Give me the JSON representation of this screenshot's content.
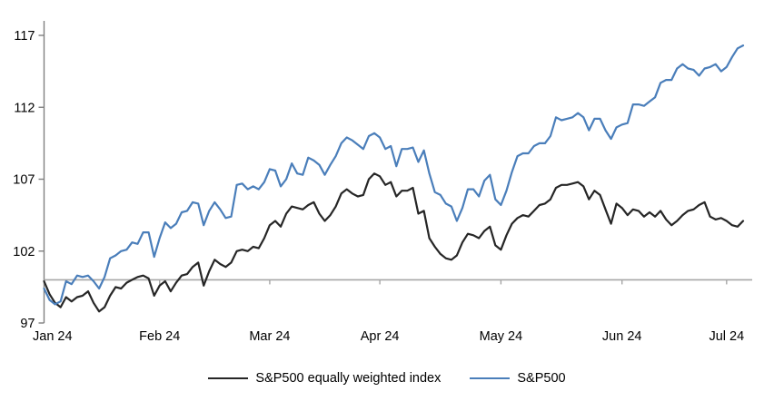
{
  "chart_data": {
    "type": "line",
    "title": "",
    "xlabel": "",
    "ylabel": "",
    "grid": false,
    "legend_position": "bottom",
    "baseline_value": 100,
    "y_axis": {
      "ticks": [
        97,
        102,
        107,
        112,
        117
      ],
      "min": 97,
      "max": 118.7
    },
    "x_axis": {
      "tick_labels": [
        "Jan 24",
        "Feb 24",
        "Mar 24",
        "Apr 24",
        "May 24",
        "Jun 24",
        "Jul 24"
      ],
      "tick_point_index": [
        0,
        21,
        41,
        61,
        83,
        105,
        124
      ],
      "total_points": 128
    },
    "series": [
      {
        "name": "S&P500 equally weighted index",
        "color": "#262626",
        "values": [
          99.9,
          99.0,
          98.4,
          98.1,
          98.8,
          98.5,
          98.8,
          98.9,
          99.2,
          98.4,
          97.8,
          98.1,
          98.9,
          99.5,
          99.4,
          99.8,
          100.0,
          100.2,
          100.3,
          100.1,
          98.9,
          99.6,
          99.9,
          99.2,
          99.8,
          100.3,
          100.4,
          100.9,
          101.2,
          99.6,
          100.6,
          101.4,
          101.1,
          100.9,
          101.2,
          102.0,
          102.1,
          102.0,
          102.3,
          102.2,
          102.9,
          103.8,
          104.1,
          103.7,
          104.6,
          105.1,
          105.0,
          104.9,
          105.2,
          105.4,
          104.6,
          104.1,
          104.5,
          105.1,
          106.0,
          106.3,
          106.0,
          105.8,
          105.9,
          107.0,
          107.4,
          107.2,
          106.6,
          106.8,
          105.8,
          106.2,
          106.2,
          106.4,
          104.6,
          104.8,
          102.9,
          102.3,
          101.8,
          101.5,
          101.4,
          101.7,
          102.6,
          103.2,
          103.1,
          102.9,
          103.4,
          103.7,
          102.4,
          102.1,
          103.1,
          103.9,
          104.3,
          104.5,
          104.4,
          104.8,
          105.2,
          105.3,
          105.6,
          106.4,
          106.6,
          106.6,
          106.7,
          106.8,
          106.5,
          105.6,
          106.2,
          105.9,
          104.9,
          103.9,
          105.3,
          105.0,
          104.5,
          104.9,
          104.8,
          104.4,
          104.7,
          104.4,
          104.8,
          104.2,
          103.8,
          104.1,
          104.5,
          104.8,
          104.9,
          105.2,
          105.4,
          104.4,
          104.2,
          104.3,
          104.1,
          103.8,
          103.7,
          104.1
        ]
      },
      {
        "name": "S&P500",
        "color": "#4A7EBA",
        "values": [
          99.4,
          98.6,
          98.3,
          98.5,
          99.9,
          99.7,
          100.3,
          100.2,
          100.3,
          99.9,
          99.4,
          100.2,
          101.5,
          101.7,
          102.0,
          102.1,
          102.6,
          102.5,
          103.3,
          103.3,
          101.6,
          102.9,
          104.0,
          103.6,
          103.9,
          104.7,
          104.8,
          105.4,
          105.3,
          103.8,
          104.8,
          105.4,
          104.9,
          104.3,
          104.4,
          106.6,
          106.7,
          106.3,
          106.5,
          106.3,
          106.8,
          107.7,
          107.6,
          106.5,
          107.0,
          108.1,
          107.4,
          107.3,
          108.5,
          108.3,
          108.0,
          107.3,
          108.0,
          108.6,
          109.5,
          109.9,
          109.7,
          109.4,
          109.1,
          110.0,
          110.2,
          109.9,
          109.1,
          109.3,
          107.9,
          109.1,
          109.1,
          109.2,
          108.2,
          109.0,
          107.4,
          106.1,
          105.9,
          105.3,
          105.1,
          104.1,
          105.0,
          106.3,
          106.3,
          105.8,
          106.9,
          107.3,
          105.6,
          105.2,
          106.2,
          107.5,
          108.6,
          108.8,
          108.8,
          109.3,
          109.5,
          109.5,
          110.0,
          111.3,
          111.1,
          111.2,
          111.3,
          111.6,
          111.3,
          110.4,
          111.2,
          111.2,
          110.4,
          109.8,
          110.6,
          110.8,
          110.9,
          112.2,
          112.2,
          112.1,
          112.4,
          112.7,
          113.7,
          113.9,
          113.9,
          114.7,
          115.0,
          114.7,
          114.6,
          114.2,
          114.7,
          114.8,
          115.0,
          114.5,
          114.8,
          115.5,
          116.1,
          116.3
        ]
      }
    ],
    "colors": {
      "axis_line": "#808080",
      "baseline": "#A6A6A6",
      "tick_text": "#000000"
    }
  },
  "legend": {
    "items": [
      {
        "label": "S&P500 equally weighted index",
        "color": "#262626"
      },
      {
        "label": "S&P500",
        "color": "#4A7EBA"
      }
    ]
  }
}
